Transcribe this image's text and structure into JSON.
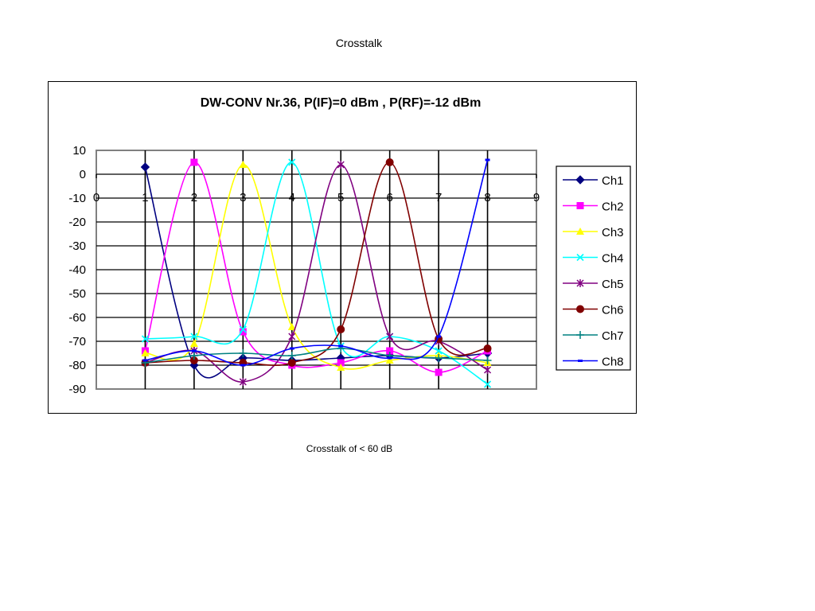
{
  "page": {
    "title": "Crosstalk",
    "caption": "Crosstalk of < 60 dB"
  },
  "chart_data": {
    "type": "line",
    "title": "DW-CONV Nr.36, P(IF)=0 dBm , P(RF)=-12 dBm",
    "xlabel": "",
    "ylabel": "",
    "xlim": [
      0,
      9
    ],
    "ylim": [
      -90,
      10
    ],
    "x_ticks": [
      "0",
      "1",
      "2",
      "3",
      "4",
      "5",
      "6",
      "7",
      "8",
      "9"
    ],
    "y_ticks": [
      "10",
      "0",
      "-10",
      "-20",
      "-30",
      "-40",
      "-50",
      "-60",
      "-70",
      "-80",
      "-90"
    ],
    "grid": true,
    "smooth": true,
    "legend_position": "right",
    "x": [
      1,
      2,
      3,
      4,
      5,
      6,
      7,
      8
    ],
    "series": [
      {
        "name": "Ch1",
        "color": "#000080",
        "marker": "diamond",
        "values": [
          3,
          -80,
          -77,
          -78,
          -77,
          -76,
          -77,
          -75
        ]
      },
      {
        "name": "Ch2",
        "color": "#FF00FF",
        "marker": "square",
        "values": [
          -74,
          5,
          -66,
          -80,
          -79,
          -74,
          -83,
          -74
        ]
      },
      {
        "name": "Ch3",
        "color": "#FFFF00",
        "marker": "triangle",
        "values": [
          -75,
          -71,
          4,
          -64,
          -81,
          -78,
          -76,
          -79
        ]
      },
      {
        "name": "Ch4",
        "color": "#00FFFF",
        "marker": "x",
        "values": [
          -69,
          -68,
          -65,
          5,
          -72,
          -68,
          -74,
          -88
        ]
      },
      {
        "name": "Ch5",
        "color": "#800080",
        "marker": "star",
        "values": [
          -79,
          -74,
          -87,
          -68,
          4,
          -68,
          -70,
          -82
        ]
      },
      {
        "name": "Ch6",
        "color": "#800000",
        "marker": "circle",
        "values": [
          -79,
          -78,
          -79,
          -79,
          -65,
          5,
          -69,
          -73
        ]
      },
      {
        "name": "Ch7",
        "color": "#008080",
        "marker": "plus",
        "values": [
          -79,
          -76,
          -75,
          -76,
          -73,
          -76,
          -77,
          -78
        ]
      },
      {
        "name": "Ch8",
        "color": "#0000FF",
        "marker": "dash",
        "values": [
          -78,
          -74,
          -80,
          -73,
          -72,
          -77,
          -68,
          6
        ]
      }
    ]
  }
}
